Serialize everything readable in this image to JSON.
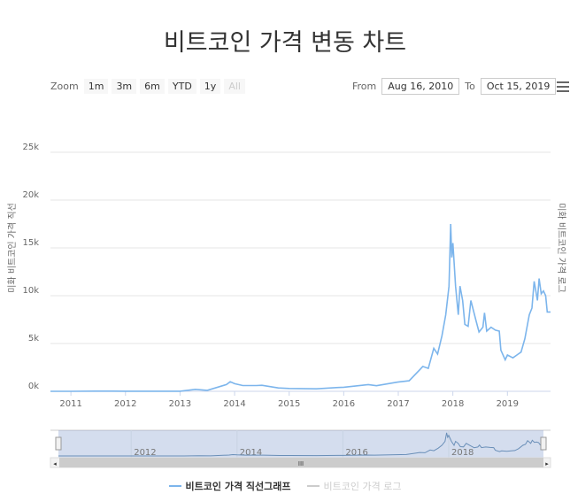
{
  "chart_data": {
    "type": "line",
    "title": "비트코인 가격 변동 차트",
    "ylabel_left": "미화 비트코인 가격 직선",
    "ylabel_right": "미화 비트코인 가격 로그",
    "xlim": [
      2010.625,
      2019.79
    ],
    "ylim": [
      0,
      25000
    ],
    "y_ticks": [
      {
        "v": 0,
        "label": "0k"
      },
      {
        "v": 5000,
        "label": "5k"
      },
      {
        "v": 10000,
        "label": "10k"
      },
      {
        "v": 15000,
        "label": "15k"
      },
      {
        "v": 20000,
        "label": "20k"
      },
      {
        "v": 25000,
        "label": "25k"
      }
    ],
    "x_ticks": [
      {
        "v": 2011,
        "label": "2011"
      },
      {
        "v": 2012,
        "label": "2012"
      },
      {
        "v": 2013,
        "label": "2013"
      },
      {
        "v": 2014,
        "label": "2014"
      },
      {
        "v": 2015,
        "label": "2015"
      },
      {
        "v": 2016,
        "label": "2016"
      },
      {
        "v": 2017,
        "label": "2017"
      },
      {
        "v": 2018,
        "label": "2018"
      },
      {
        "v": 2019,
        "label": "2019"
      }
    ],
    "navigator_ticks": [
      {
        "v": 2012,
        "label": "2012"
      },
      {
        "v": 2014,
        "label": "2014"
      },
      {
        "v": 2016,
        "label": "2016"
      },
      {
        "v": 2018,
        "label": "2018"
      }
    ],
    "grid": true,
    "legend_position": "bottom",
    "series": [
      {
        "name": "비트코인 가격 직선그래프",
        "color": "#7cb5ec",
        "visible": true,
        "points": [
          [
            2010.625,
            0.07
          ],
          [
            2011.0,
            0.3
          ],
          [
            2011.45,
            18
          ],
          [
            2012.0,
            5
          ],
          [
            2013.0,
            13
          ],
          [
            2013.28,
            200
          ],
          [
            2013.5,
            100
          ],
          [
            2013.85,
            700
          ],
          [
            2013.92,
            1000
          ],
          [
            2014.0,
            800
          ],
          [
            2014.15,
            600
          ],
          [
            2014.4,
            600
          ],
          [
            2014.5,
            630
          ],
          [
            2014.8,
            350
          ],
          [
            2015.0,
            300
          ],
          [
            2015.5,
            260
          ],
          [
            2015.9,
            400
          ],
          [
            2016.0,
            430
          ],
          [
            2016.45,
            700
          ],
          [
            2016.6,
            580
          ],
          [
            2016.99,
            960
          ],
          [
            2017.2,
            1100
          ],
          [
            2017.4,
            2300
          ],
          [
            2017.45,
            2600
          ],
          [
            2017.55,
            2400
          ],
          [
            2017.65,
            4500
          ],
          [
            2017.72,
            3900
          ],
          [
            2017.8,
            5800
          ],
          [
            2017.87,
            8000
          ],
          [
            2017.93,
            11000
          ],
          [
            2017.96,
            17500
          ],
          [
            2017.98,
            14000
          ],
          [
            2018.0,
            15500
          ],
          [
            2018.05,
            11000
          ],
          [
            2018.1,
            8000
          ],
          [
            2018.13,
            11000
          ],
          [
            2018.18,
            9500
          ],
          [
            2018.22,
            7000
          ],
          [
            2018.28,
            6800
          ],
          [
            2018.33,
            9500
          ],
          [
            2018.42,
            7500
          ],
          [
            2018.48,
            6200
          ],
          [
            2018.55,
            6700
          ],
          [
            2018.58,
            8200
          ],
          [
            2018.62,
            6300
          ],
          [
            2018.7,
            6700
          ],
          [
            2018.78,
            6400
          ],
          [
            2018.85,
            6300
          ],
          [
            2018.88,
            4300
          ],
          [
            2018.96,
            3300
          ],
          [
            2019.0,
            3800
          ],
          [
            2019.1,
            3500
          ],
          [
            2019.2,
            3900
          ],
          [
            2019.25,
            4100
          ],
          [
            2019.32,
            5500
          ],
          [
            2019.4,
            8000
          ],
          [
            2019.45,
            8700
          ],
          [
            2019.49,
            11500
          ],
          [
            2019.52,
            10500
          ],
          [
            2019.55,
            9500
          ],
          [
            2019.58,
            11800
          ],
          [
            2019.62,
            10200
          ],
          [
            2019.66,
            10500
          ],
          [
            2019.7,
            10000
          ],
          [
            2019.73,
            8300
          ],
          [
            2019.79,
            8300
          ]
        ]
      },
      {
        "name": "비트코인 가격 로그",
        "color": "#cccccc",
        "visible": false
      }
    ]
  },
  "range_selector": {
    "zoom_label": "Zoom",
    "buttons": [
      "1m",
      "3m",
      "6m",
      "YTD",
      "1y",
      "All"
    ],
    "from_label": "From",
    "from_value": "Aug 16, 2010",
    "to_label": "To",
    "to_value": "Oct 15, 2019"
  },
  "scrollbar_grip": "III"
}
